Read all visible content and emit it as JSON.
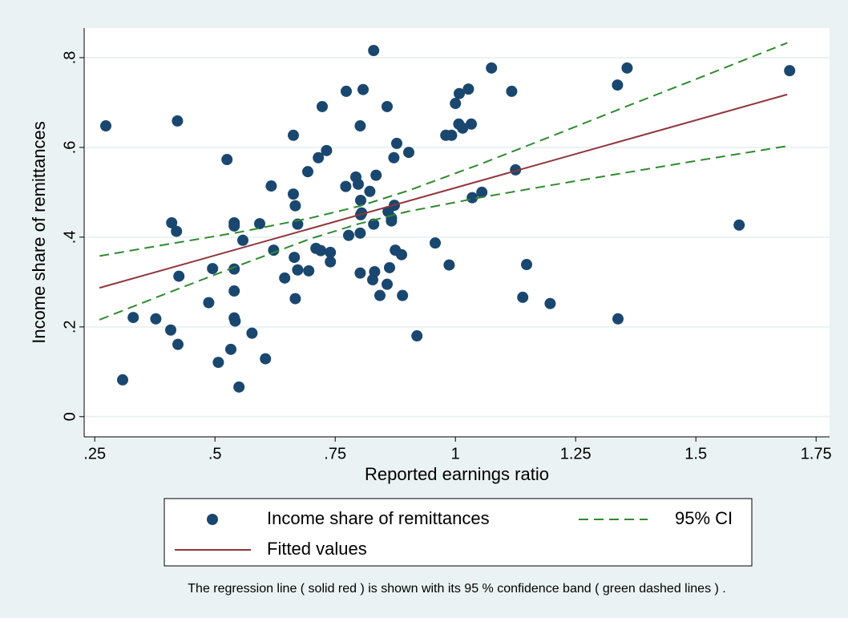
{
  "chart_data": {
    "type": "scatter",
    "xlabel": "Reported earnings ratio",
    "ylabel": "Income share of remittances",
    "note": "The regression line ( solid red ) is shown with its 95 % confidence band ( green dashed lines ) .",
    "xlim": [
      0.228,
      1.778
    ],
    "ylim": [
      -0.045,
      0.866
    ],
    "xticks": [
      {
        "value": 0.25,
        "label": ".25"
      },
      {
        "value": 0.5,
        "label": ".5"
      },
      {
        "value": 0.75,
        "label": ".75"
      },
      1,
      1.25,
      1.5,
      1.75
    ],
    "yticks": [
      0,
      {
        "value": 0.2,
        "label": ".2"
      },
      {
        "value": 0.4,
        "label": ".4"
      },
      {
        "value": 0.6,
        "label": ".6"
      },
      {
        "value": 0.8,
        "label": ".8"
      }
    ],
    "grid": true,
    "series": [
      {
        "name": "Income share of remittances",
        "style": "markers",
        "color": "#1a476f",
        "x": [
          0.273,
          0.308,
          0.33,
          0.377,
          0.408,
          0.41,
          0.42,
          0.422,
          0.423,
          0.425,
          0.487,
          0.495,
          0.507,
          0.525,
          0.533,
          0.54,
          0.54,
          0.54,
          0.54,
          0.54,
          0.542,
          0.55,
          0.558,
          0.577,
          0.593,
          0.605,
          0.617,
          0.622,
          0.645,
          0.663,
          0.663,
          0.667,
          0.665,
          0.667,
          0.672,
          0.672,
          0.693,
          0.695,
          0.71,
          0.715,
          0.72,
          0.723,
          0.732,
          0.74,
          0.74,
          0.773,
          0.772,
          0.778,
          0.793,
          0.798,
          0.802,
          0.802,
          0.802,
          0.803,
          0.803,
          0.805,
          0.808,
          0.822,
          0.828,
          0.83,
          0.83,
          0.832,
          0.835,
          0.843,
          0.858,
          0.858,
          0.86,
          0.863,
          0.867,
          0.867,
          0.872,
          0.873,
          0.875,
          0.878,
          0.888,
          0.89,
          0.903,
          0.92,
          0.958,
          0.98,
          0.987,
          0.992,
          1.0,
          1.007,
          1.008,
          1.015,
          1.027,
          1.033,
          1.035,
          1.055,
          1.075,
          1.117,
          1.125,
          1.14,
          1.148,
          1.197,
          1.337,
          1.338,
          1.357,
          1.59,
          1.695
        ],
        "values": [
          0.648,
          0.082,
          0.221,
          0.218,
          0.193,
          0.432,
          0.413,
          0.659,
          0.161,
          0.313,
          0.254,
          0.33,
          0.121,
          0.573,
          0.15,
          0.432,
          0.425,
          0.329,
          0.28,
          0.22,
          0.213,
          0.066,
          0.393,
          0.186,
          0.43,
          0.129,
          0.514,
          0.371,
          0.309,
          0.496,
          0.627,
          0.47,
          0.355,
          0.263,
          0.429,
          0.327,
          0.546,
          0.325,
          0.375,
          0.577,
          0.37,
          0.691,
          0.593,
          0.366,
          0.345,
          0.725,
          0.513,
          0.404,
          0.534,
          0.518,
          0.648,
          0.409,
          0.32,
          0.482,
          0.45,
          0.454,
          0.729,
          0.502,
          0.305,
          0.816,
          0.429,
          0.323,
          0.538,
          0.27,
          0.691,
          0.295,
          0.457,
          0.332,
          0.436,
          0.443,
          0.577,
          0.471,
          0.371,
          0.609,
          0.361,
          0.27,
          0.589,
          0.18,
          0.387,
          0.627,
          0.338,
          0.627,
          0.698,
          0.652,
          0.72,
          0.643,
          0.73,
          0.652,
          0.488,
          0.5,
          0.777,
          0.725,
          0.55,
          0.266,
          0.339,
          0.252,
          0.739,
          0.218,
          0.777,
          0.427,
          0.771
        ]
      },
      {
        "name": "Fitted values",
        "style": "solid",
        "color": "#90353b",
        "x": [
          0.26,
          1.69
        ],
        "values": [
          0.287,
          0.718
        ]
      },
      {
        "name": "95% CI",
        "style": "dashed",
        "color": "#2f8a2f",
        "x": [
          0.26,
          0.4,
          0.55,
          0.7,
          0.8,
          0.9,
          1.05,
          1.2,
          1.35,
          1.5,
          1.69
        ],
        "upper": [
          0.358,
          0.384,
          0.411,
          0.443,
          0.469,
          0.503,
          0.562,
          0.625,
          0.689,
          0.752,
          0.833
        ],
        "lower": [
          0.216,
          0.275,
          0.337,
          0.397,
          0.43,
          0.457,
          0.488,
          0.516,
          0.543,
          0.57,
          0.603
        ]
      }
    ]
  }
}
